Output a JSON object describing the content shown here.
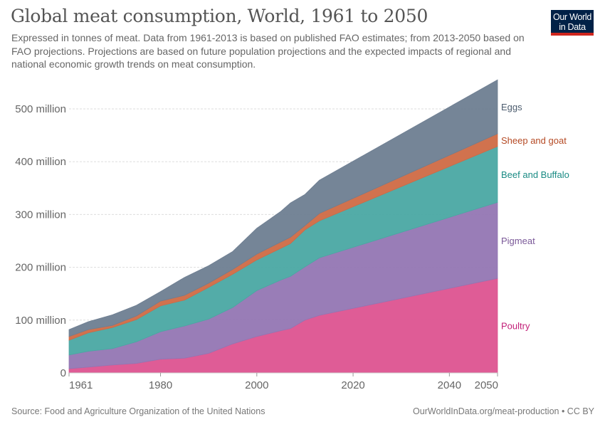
{
  "header": {
    "title": "Global meat consumption, World, 1961 to 2050",
    "subtitle": "Expressed in tonnes of meat. Data from 1961-2013 is based on published FAO estimates; from 2013-2050 based on FAO projections. Projections are based on future population projections and the expected impacts of regional and national economic growth trends on meat consumption.",
    "logo_line1": "Our World",
    "logo_line2": "in Data"
  },
  "footer": {
    "source": "Source: Food and Agriculture Organization of the United Nations",
    "url_license": "OurWorldInData.org/meat-production • CC BY"
  },
  "chart_data": {
    "type": "area",
    "stacked": true,
    "title": "Global meat consumption, World, 1961 to 2050",
    "xlabel": "",
    "ylabel": "",
    "xlim": [
      1961,
      2050
    ],
    "ylim": [
      0,
      560000000
    ],
    "x_ticks": [
      {
        "value": 1961,
        "label": "1961"
      },
      {
        "value": 1980,
        "label": "1980"
      },
      {
        "value": 2000,
        "label": "2000"
      },
      {
        "value": 2020,
        "label": "2020"
      },
      {
        "value": 2040,
        "label": "2040"
      },
      {
        "value": 2050,
        "label": "2050"
      }
    ],
    "y_ticks": [
      {
        "value": 0,
        "label": "0"
      },
      {
        "value": 100000000,
        "label": "100 million"
      },
      {
        "value": 200000000,
        "label": "200 million"
      },
      {
        "value": 300000000,
        "label": "300 million"
      },
      {
        "value": 400000000,
        "label": "400 million"
      },
      {
        "value": 500000000,
        "label": "500 million"
      }
    ],
    "grid": "horizontal-dashed",
    "legend": "right (inline labels)",
    "x": [
      1961,
      1965,
      1970,
      1975,
      1980,
      1985,
      1990,
      1995,
      2000,
      2005,
      2007,
      2010,
      2013,
      2050
    ],
    "series": [
      {
        "name": "Poultry",
        "color": "#dd5390",
        "label_color": "#c21f78",
        "values": [
          8,
          11,
          15,
          18,
          26,
          28,
          37,
          55,
          69,
          80,
          84,
          100,
          109,
          179
        ]
      },
      {
        "name": "Pigmeat",
        "color": "#9376b3",
        "label_color": "#7a5898",
        "values": [
          26,
          30,
          31,
          41,
          52,
          61,
          65,
          69,
          87,
          96,
          99,
          101,
          109,
          144
        ]
      },
      {
        "name": "Beef and Buffalo",
        "color": "#4aa8a3",
        "label_color": "#1a8b84",
        "values": [
          28,
          35,
          40,
          42,
          49,
          49,
          60,
          63,
          58,
          60,
          62,
          70,
          70,
          106
        ]
      },
      {
        "name": "Sheep and goat",
        "color": "#cf6a45",
        "label_color": "#b54a24",
        "values": [
          7,
          6,
          4,
          7,
          9,
          9,
          8,
          9,
          11,
          12,
          12,
          8,
          14,
          24
        ]
      },
      {
        "name": "Eggs",
        "color": "#6e7e91",
        "label_color": "#4c5c6e",
        "values": [
          13,
          15,
          20,
          20,
          18,
          34,
          33,
          34,
          49,
          58,
          65,
          59,
          63,
          102
        ]
      }
    ],
    "units": "million tonnes"
  }
}
